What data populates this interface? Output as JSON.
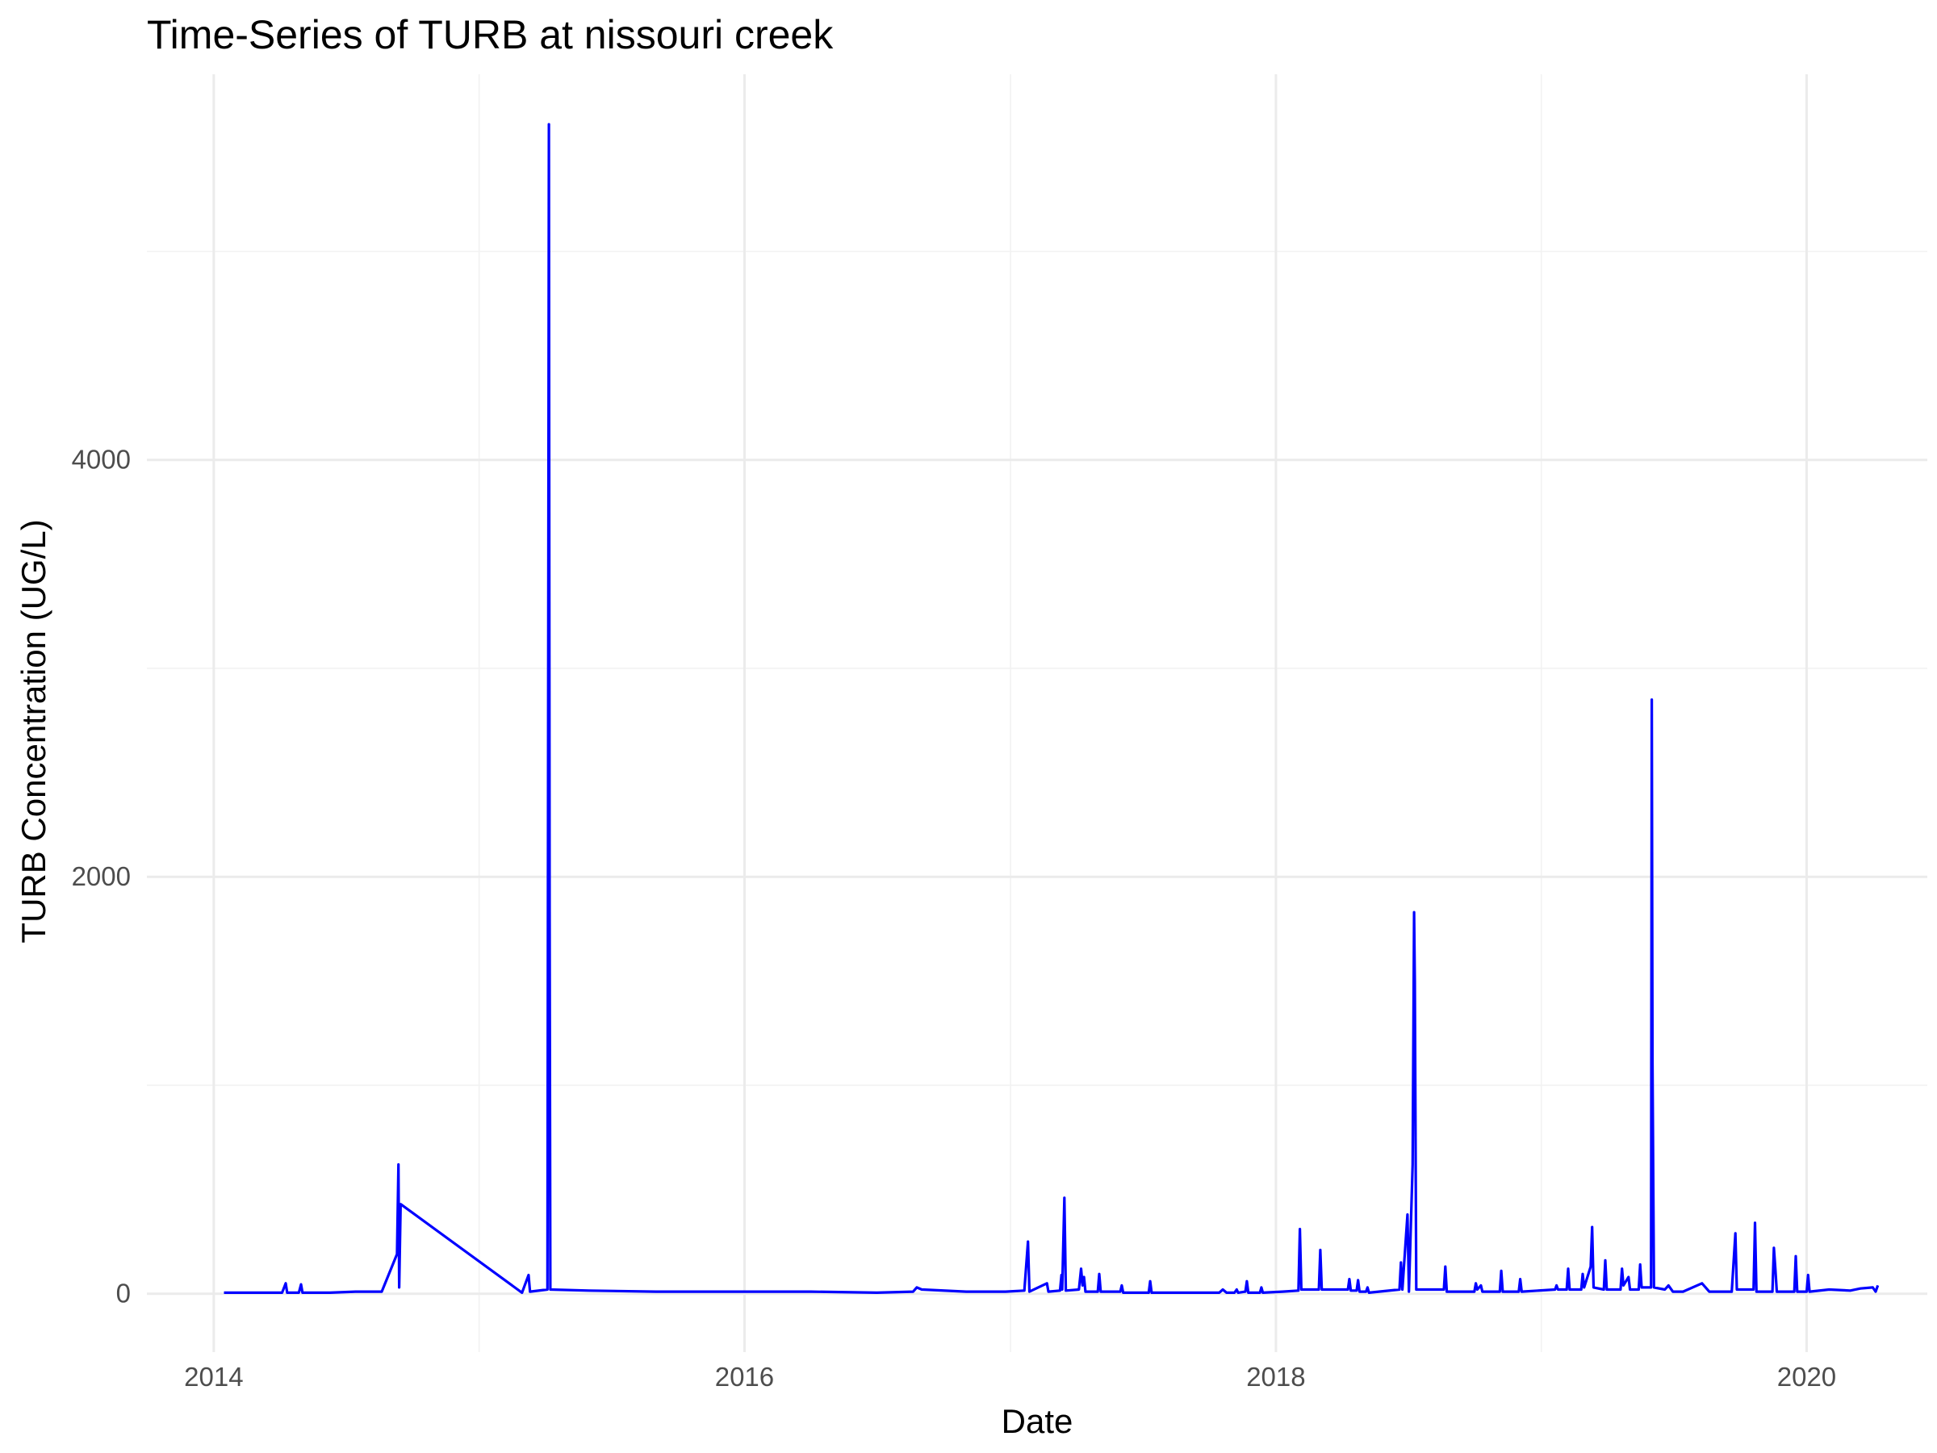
{
  "chart_data": {
    "type": "line",
    "title": "Time-Series of TURB at nissouri creek",
    "xlabel": "Date",
    "ylabel": "TURB Concentration (UG/L)",
    "xlim": [
      "2013-10-01",
      "2020-06-15"
    ],
    "ylim": [
      -280,
      5850
    ],
    "x_ticks": [
      {
        "date": "2014-01-01",
        "label": "2014"
      },
      {
        "date": "2016-01-01",
        "label": "2016"
      },
      {
        "date": "2018-01-01",
        "label": "2018"
      },
      {
        "date": "2020-01-01",
        "label": "2020"
      }
    ],
    "y_ticks": [
      {
        "value": 0,
        "label": "0"
      },
      {
        "value": 2000,
        "label": "2000"
      },
      {
        "value": 4000,
        "label": "4000"
      }
    ],
    "x_minor_ticks": [
      "2015-01-01",
      "2017-01-01",
      "2019-01-01"
    ],
    "y_minor_ticks": [
      1000,
      3000,
      5000
    ],
    "grid": true,
    "legend": "none",
    "series": [
      {
        "color": "#0000ff",
        "points": [
          [
            "2014-01-15",
            5
          ],
          [
            "2014-02-20",
            5
          ],
          [
            "2014-04-05",
            5
          ],
          [
            "2014-04-10",
            50
          ],
          [
            "2014-04-12",
            5
          ],
          [
            "2014-04-28",
            5
          ],
          [
            "2014-05-01",
            45
          ],
          [
            "2014-05-03",
            5
          ],
          [
            "2014-06-10",
            5
          ],
          [
            "2014-07-15",
            10
          ],
          [
            "2014-08-20",
            10
          ],
          [
            "2014-09-10",
            190
          ],
          [
            "2014-09-12",
            620
          ],
          [
            "2014-09-13",
            30
          ],
          [
            "2014-09-15",
            430
          ],
          [
            "2015-03-01",
            5
          ],
          [
            "2015-03-10",
            90
          ],
          [
            "2015-03-12",
            10
          ],
          [
            "2015-04-05",
            20
          ],
          [
            "2015-04-07",
            5610
          ],
          [
            "2015-04-08",
            1830
          ],
          [
            "2015-04-09",
            20
          ],
          [
            "2015-06-01",
            15
          ],
          [
            "2015-09-01",
            10
          ],
          [
            "2016-04-01",
            10
          ],
          [
            "2016-07-01",
            5
          ],
          [
            "2016-08-20",
            10
          ],
          [
            "2016-08-25",
            30
          ],
          [
            "2016-09-01",
            20
          ],
          [
            "2016-11-01",
            10
          ],
          [
            "2016-12-25",
            10
          ],
          [
            "2017-01-20",
            15
          ],
          [
            "2017-01-25",
            250
          ],
          [
            "2017-01-27",
            10
          ],
          [
            "2017-02-20",
            50
          ],
          [
            "2017-02-22",
            10
          ],
          [
            "2017-03-10",
            15
          ],
          [
            "2017-03-12",
            90
          ],
          [
            "2017-03-13",
            20
          ],
          [
            "2017-03-16",
            460
          ],
          [
            "2017-03-18",
            15
          ],
          [
            "2017-04-05",
            20
          ],
          [
            "2017-04-08",
            120
          ],
          [
            "2017-04-10",
            40
          ],
          [
            "2017-04-12",
            80
          ],
          [
            "2017-04-14",
            10
          ],
          [
            "2017-05-01",
            10
          ],
          [
            "2017-05-03",
            95
          ],
          [
            "2017-05-05",
            10
          ],
          [
            "2017-06-01",
            10
          ],
          [
            "2017-06-03",
            40
          ],
          [
            "2017-06-05",
            5
          ],
          [
            "2017-07-10",
            5
          ],
          [
            "2017-07-12",
            60
          ],
          [
            "2017-07-14",
            5
          ],
          [
            "2017-10-15",
            5
          ],
          [
            "2017-10-20",
            20
          ],
          [
            "2017-10-25",
            5
          ],
          [
            "2017-11-05",
            5
          ],
          [
            "2017-11-08",
            20
          ],
          [
            "2017-11-10",
            5
          ],
          [
            "2017-11-20",
            10
          ],
          [
            "2017-11-22",
            60
          ],
          [
            "2017-11-24",
            5
          ],
          [
            "2017-12-10",
            5
          ],
          [
            "2017-12-12",
            30
          ],
          [
            "2017-12-14",
            5
          ],
          [
            "2018-01-10",
            10
          ],
          [
            "2018-02-01",
            15
          ],
          [
            "2018-02-03",
            310
          ],
          [
            "2018-02-05",
            20
          ],
          [
            "2018-03-01",
            20
          ],
          [
            "2018-03-03",
            210
          ],
          [
            "2018-03-05",
            20
          ],
          [
            "2018-04-10",
            20
          ],
          [
            "2018-04-12",
            70
          ],
          [
            "2018-04-14",
            15
          ],
          [
            "2018-04-22",
            15
          ],
          [
            "2018-04-24",
            65
          ],
          [
            "2018-04-26",
            10
          ],
          [
            "2018-05-05",
            10
          ],
          [
            "2018-05-07",
            30
          ],
          [
            "2018-05-09",
            5
          ],
          [
            "2018-06-20",
            20
          ],
          [
            "2018-06-22",
            150
          ],
          [
            "2018-06-24",
            20
          ],
          [
            "2018-07-01",
            380
          ],
          [
            "2018-07-03",
            10
          ],
          [
            "2018-07-08",
            620
          ],
          [
            "2018-07-10",
            1830
          ],
          [
            "2018-07-11",
            1500
          ],
          [
            "2018-07-13",
            20
          ],
          [
            "2018-08-20",
            20
          ],
          [
            "2018-08-22",
            130
          ],
          [
            "2018-08-24",
            10
          ],
          [
            "2018-09-10",
            10
          ],
          [
            "2018-10-01",
            10
          ],
          [
            "2018-10-03",
            50
          ],
          [
            "2018-10-05",
            20
          ],
          [
            "2018-10-10",
            40
          ],
          [
            "2018-10-12",
            10
          ],
          [
            "2018-11-05",
            10
          ],
          [
            "2018-11-07",
            110
          ],
          [
            "2018-11-09",
            10
          ],
          [
            "2018-12-01",
            10
          ],
          [
            "2018-12-03",
            70
          ],
          [
            "2018-12-05",
            10
          ],
          [
            "2019-01-20",
            20
          ],
          [
            "2019-01-22",
            40
          ],
          [
            "2019-01-24",
            20
          ],
          [
            "2019-02-05",
            20
          ],
          [
            "2019-02-07",
            120
          ],
          [
            "2019-02-09",
            20
          ],
          [
            "2019-02-25",
            20
          ],
          [
            "2019-02-27",
            95
          ],
          [
            "2019-03-01",
            30
          ],
          [
            "2019-03-10",
            130
          ],
          [
            "2019-03-12",
            320
          ],
          [
            "2019-03-14",
            30
          ],
          [
            "2019-03-28",
            20
          ],
          [
            "2019-03-30",
            160
          ],
          [
            "2019-04-01",
            20
          ],
          [
            "2019-04-20",
            20
          ],
          [
            "2019-04-22",
            120
          ],
          [
            "2019-04-24",
            40
          ],
          [
            "2019-05-01",
            80
          ],
          [
            "2019-05-03",
            20
          ],
          [
            "2019-05-15",
            20
          ],
          [
            "2019-05-17",
            140
          ],
          [
            "2019-05-19",
            30
          ],
          [
            "2019-06-01",
            30
          ],
          [
            "2019-06-02",
            2850
          ],
          [
            "2019-06-03",
            1100
          ],
          [
            "2019-06-05",
            30
          ],
          [
            "2019-06-20",
            20
          ],
          [
            "2019-06-25",
            40
          ],
          [
            "2019-07-01",
            10
          ],
          [
            "2019-07-15",
            10
          ],
          [
            "2019-08-10",
            50
          ],
          [
            "2019-08-20",
            10
          ],
          [
            "2019-09-20",
            10
          ],
          [
            "2019-09-25",
            290
          ],
          [
            "2019-09-27",
            20
          ],
          [
            "2019-10-20",
            20
          ],
          [
            "2019-10-22",
            340
          ],
          [
            "2019-10-24",
            10
          ],
          [
            "2019-11-15",
            10
          ],
          [
            "2019-11-17",
            220
          ],
          [
            "2019-11-19",
            120
          ],
          [
            "2019-11-21",
            10
          ],
          [
            "2019-12-15",
            10
          ],
          [
            "2019-12-17",
            180
          ],
          [
            "2019-12-19",
            10
          ],
          [
            "2020-01-01",
            10
          ],
          [
            "2020-01-03",
            90
          ],
          [
            "2020-01-05",
            10
          ],
          [
            "2020-02-01",
            20
          ],
          [
            "2020-03-01",
            15
          ],
          [
            "2020-03-15",
            25
          ],
          [
            "2020-04-01",
            30
          ],
          [
            "2020-04-05",
            10
          ],
          [
            "2020-04-08",
            40
          ]
        ]
      }
    ]
  }
}
